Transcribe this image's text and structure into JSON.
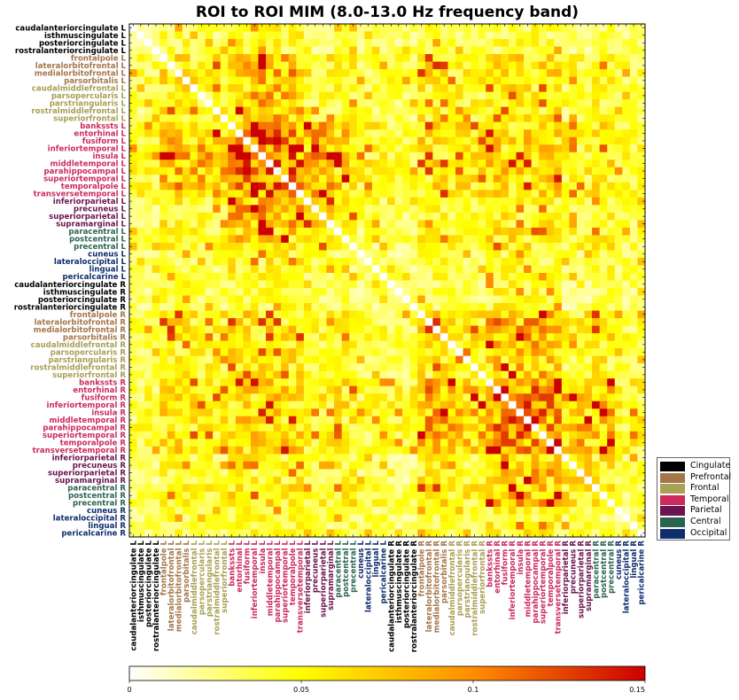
{
  "title": "ROI to ROI MIM (8.0-13.0 Hz frequency band)",
  "legend": [
    {
      "name": "Cingulate",
      "color": "#000000"
    },
    {
      "name": "Prefrontal",
      "color": "#a5764a"
    },
    {
      "name": "Frontal",
      "color": "#a8a055"
    },
    {
      "name": "Temporal",
      "color": "#cc2b5e"
    },
    {
      "name": "Parietal",
      "color": "#6b1450"
    },
    {
      "name": "Central",
      "color": "#2a6450"
    },
    {
      "name": "Occipital",
      "color": "#0f2e6e"
    }
  ],
  "chart_data": {
    "type": "heatmap",
    "title": "ROI to ROI MIM (8.0-13.0 Hz frequency band)",
    "colormap": "hot_r",
    "colorbar": {
      "min": 0,
      "max": 0.15,
      "ticks": [
        0,
        0.05,
        0.1,
        0.15
      ],
      "tick_labels": [
        "0",
        "0.05",
        "0.1",
        "0.15"
      ]
    },
    "rows": [
      "caudalanteriorcingulate L",
      "isthmuscingulate L",
      "posteriorcingulate L",
      "rostralanteriorcingulate L",
      "frontalpole L",
      "lateralorbitofrontal L",
      "medialorbitofrontal L",
      "parsorbitalis L",
      "caudalmiddlefrontal L",
      "parsopercularis L",
      "parstriangularis L",
      "rostralmiddlefrontal L",
      "superiorfrontal L",
      "bankssts L",
      "entorhinal L",
      "fusiform L",
      "inferiortemporal L",
      "insula L",
      "middletemporal L",
      "parahippocampal L",
      "superiortemporal L",
      "temporalpole L",
      "transversetemporal L",
      "inferiorparietal L",
      "precuneus L",
      "superiorparietal L",
      "supramarginal L",
      "paracentral L",
      "postcentral L",
      "precentral L",
      "cuneus L",
      "lateraloccipital L",
      "lingual L",
      "pericalcarine L",
      "caudalanteriorcingulate R",
      "isthmuscingulate R",
      "posteriorcingulate R",
      "rostralanteriorcingulate R",
      "frontalpole R",
      "lateralorbitofrontal R",
      "medialorbitofrontal R",
      "parsorbitalis R",
      "caudalmiddlefrontal R",
      "parsopercularis R",
      "parstriangularis R",
      "rostralmiddlefrontal R",
      "superiorfrontal R",
      "bankssts R",
      "entorhinal R",
      "fusiform R",
      "inferiortemporal R",
      "insula R",
      "middletemporal R",
      "parahippocampal R",
      "superiortemporal R",
      "temporalpole R",
      "transversetemporal R",
      "inferiorparietal R",
      "precuneus R",
      "superiorparietal R",
      "supramarginal R",
      "paracentral R",
      "postcentral R",
      "precentral R",
      "cuneus R",
      "lateraloccipital R",
      "lingual R",
      "pericalcarine R"
    ],
    "row_groups": [
      "Cingulate",
      "Cingulate",
      "Cingulate",
      "Cingulate",
      "Prefrontal",
      "Prefrontal",
      "Prefrontal",
      "Prefrontal",
      "Frontal",
      "Frontal",
      "Frontal",
      "Frontal",
      "Frontal",
      "Temporal",
      "Temporal",
      "Temporal",
      "Temporal",
      "Temporal",
      "Temporal",
      "Temporal",
      "Temporal",
      "Temporal",
      "Temporal",
      "Parietal",
      "Parietal",
      "Parietal",
      "Parietal",
      "Central",
      "Central",
      "Central",
      "Occipital",
      "Occipital",
      "Occipital",
      "Occipital",
      "Cingulate",
      "Cingulate",
      "Cingulate",
      "Cingulate",
      "Prefrontal",
      "Prefrontal",
      "Prefrontal",
      "Prefrontal",
      "Frontal",
      "Frontal",
      "Frontal",
      "Frontal",
      "Frontal",
      "Temporal",
      "Temporal",
      "Temporal",
      "Temporal",
      "Temporal",
      "Temporal",
      "Temporal",
      "Temporal",
      "Temporal",
      "Temporal",
      "Parietal",
      "Parietal",
      "Parietal",
      "Parietal",
      "Central",
      "Central",
      "Central",
      "Occipital",
      "Occipital",
      "Occipital",
      "Occipital"
    ],
    "block_values": {
      "_note_rows_cols": "approximate average MIM per lobe pair (groups: Cingulate, Prefrontal, Frontal, Temporal, Parietal, Central, Occipital); first index = row hemisphere-lobe, values symmetric",
      "within_L": [
        [
          0.03,
          0.04,
          0.035,
          0.045,
          0.025,
          0.035,
          0.03
        ],
        [
          0.04,
          0.06,
          0.055,
          0.08,
          0.05,
          0.05,
          0.04
        ],
        [
          0.035,
          0.055,
          0.05,
          0.075,
          0.045,
          0.045,
          0.035
        ],
        [
          0.045,
          0.08,
          0.075,
          0.11,
          0.08,
          0.07,
          0.05
        ],
        [
          0.025,
          0.05,
          0.045,
          0.08,
          0.06,
          0.055,
          0.04
        ],
        [
          0.035,
          0.05,
          0.045,
          0.07,
          0.055,
          0.05,
          0.035
        ],
        [
          0.03,
          0.04,
          0.035,
          0.05,
          0.04,
          0.035,
          0.03
        ]
      ],
      "within_R": [
        [
          0.03,
          0.04,
          0.035,
          0.045,
          0.025,
          0.035,
          0.03
        ],
        [
          0.04,
          0.06,
          0.055,
          0.085,
          0.055,
          0.06,
          0.04
        ],
        [
          0.035,
          0.055,
          0.05,
          0.075,
          0.045,
          0.05,
          0.035
        ],
        [
          0.045,
          0.085,
          0.075,
          0.105,
          0.075,
          0.075,
          0.05
        ],
        [
          0.025,
          0.055,
          0.045,
          0.075,
          0.055,
          0.06,
          0.04
        ],
        [
          0.035,
          0.06,
          0.05,
          0.075,
          0.06,
          0.055,
          0.035
        ],
        [
          0.03,
          0.04,
          0.035,
          0.05,
          0.04,
          0.035,
          0.03
        ]
      ],
      "between_L_rows_R_cols": [
        [
          0.03,
          0.04,
          0.035,
          0.04,
          0.03,
          0.035,
          0.03
        ],
        [
          0.04,
          0.06,
          0.05,
          0.06,
          0.045,
          0.05,
          0.04
        ],
        [
          0.035,
          0.05,
          0.045,
          0.055,
          0.04,
          0.045,
          0.035
        ],
        [
          0.04,
          0.06,
          0.055,
          0.065,
          0.05,
          0.055,
          0.045
        ],
        [
          0.03,
          0.045,
          0.04,
          0.05,
          0.04,
          0.045,
          0.035
        ],
        [
          0.035,
          0.05,
          0.045,
          0.055,
          0.045,
          0.05,
          0.04
        ],
        [
          0.03,
          0.04,
          0.035,
          0.045,
          0.035,
          0.04,
          0.035
        ]
      ]
    },
    "diagonal_value": 0
  }
}
